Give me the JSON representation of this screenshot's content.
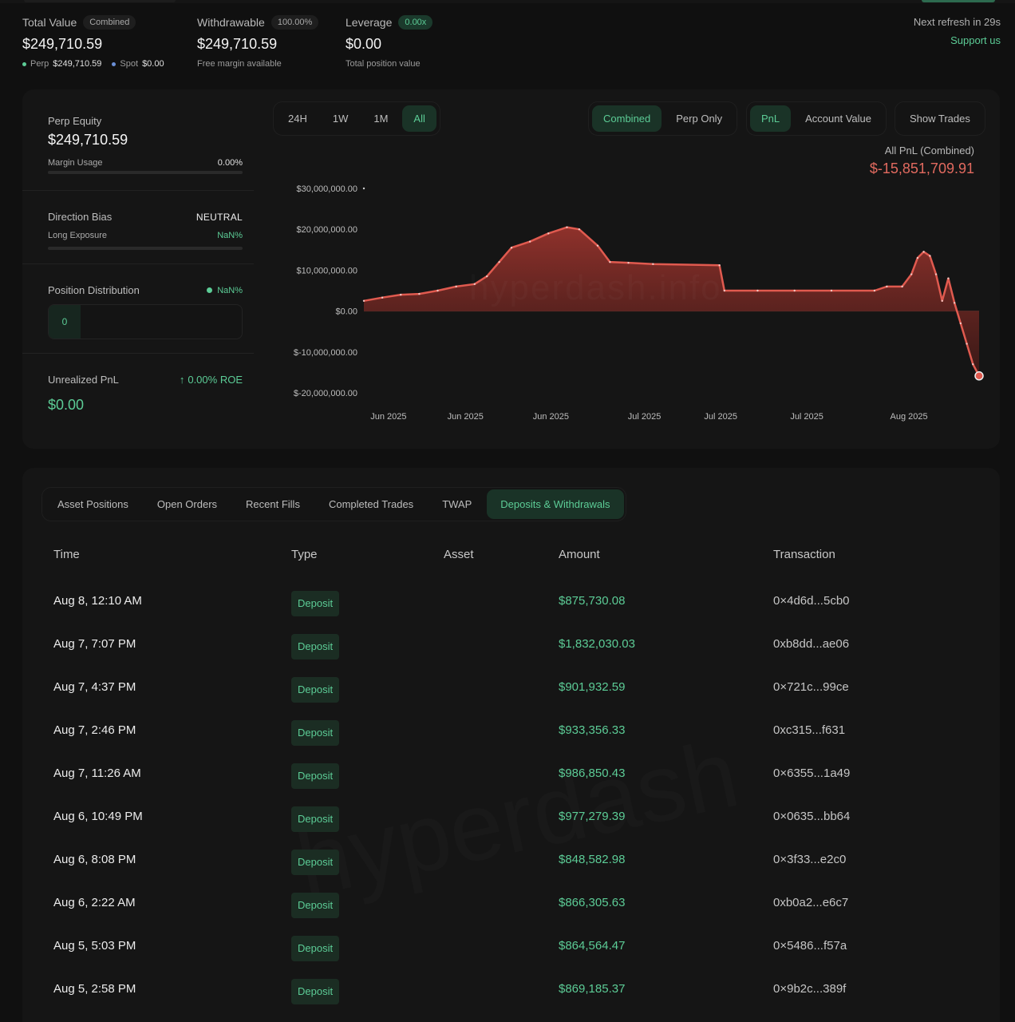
{
  "summary": {
    "total_value": {
      "label": "Total Value",
      "tag": "Combined",
      "value": "$249,710.59",
      "perp_label": "Perp",
      "perp_value": "$249,710.59",
      "spot_label": "Spot",
      "spot_value": "$0.00",
      "perp_color": "#5ccc96",
      "spot_color": "#6b8fd6"
    },
    "withdrawable": {
      "label": "Withdrawable",
      "tag": "100.00%",
      "value": "$249,710.59",
      "sub": "Free margin available"
    },
    "leverage": {
      "label": "Leverage",
      "tag": "0.00x",
      "value": "$0.00",
      "sub": "Total position value"
    },
    "refresh_text": "Next refresh in 29s",
    "support_link": "Support us"
  },
  "equity": {
    "label": "Perp Equity",
    "value": "$249,710.59",
    "margin_label": "Margin Usage",
    "margin_value": "0.00%",
    "margin_fraction": 0
  },
  "bias": {
    "label": "Direction Bias",
    "value": "NEUTRAL",
    "exposure_label": "Long Exposure",
    "exposure_value": "NaN%"
  },
  "distribution": {
    "label": "Position Distribution",
    "value": "NaN%",
    "segment_label": "0"
  },
  "unrealized": {
    "label": "Unrealized PnL",
    "roe": "0.00% ROE",
    "value": "$0.00"
  },
  "controls": {
    "ranges": [
      "24H",
      "1W",
      "1M",
      "All"
    ],
    "active_range": "All",
    "modes": [
      "Combined",
      "Perp Only"
    ],
    "active_mode": "Combined",
    "metrics": [
      "PnL",
      "Account Value"
    ],
    "active_metric": "PnL",
    "show_trades": "Show Trades"
  },
  "chart_data": {
    "type": "area",
    "title": "All PnL (Combined)",
    "current_value": "$-15,851,709.91",
    "watermark": "hyperdash.info",
    "y_ticks": [
      {
        "value": 30000000,
        "label": "$30,000,000.00"
      },
      {
        "value": 20000000,
        "label": "$20,000,000.00"
      },
      {
        "value": 10000000,
        "label": "$10,000,000.00"
      },
      {
        "value": 0,
        "label": "$0.00"
      },
      {
        "value": -10000000,
        "label": "$-10,000,000.00"
      },
      {
        "value": -20000000,
        "label": "$-20,000,000.00"
      }
    ],
    "ylim": [
      -20000000,
      30000000
    ],
    "x_domain": [
      0,
      100
    ],
    "x_ticks": [
      {
        "x": 4,
        "label": "Jun 2025"
      },
      {
        "x": 16.5,
        "label": "Jun 2025"
      },
      {
        "x": 30.4,
        "label": "Jun 2025"
      },
      {
        "x": 45.6,
        "label": "Jul 2025"
      },
      {
        "x": 58,
        "label": "Jul 2025"
      },
      {
        "x": 72,
        "label": "Jul 2025"
      },
      {
        "x": 88.6,
        "label": "Aug 2025"
      }
    ],
    "series": [
      {
        "name": "PnL",
        "color": "#e05a4f",
        "points": [
          [
            0,
            2500000
          ],
          [
            3,
            3300000
          ],
          [
            6,
            4000000
          ],
          [
            9,
            4200000
          ],
          [
            12,
            5000000
          ],
          [
            15,
            6000000
          ],
          [
            18,
            6600000
          ],
          [
            20,
            8500000
          ],
          [
            22,
            12000000
          ],
          [
            24,
            15500000
          ],
          [
            27,
            17000000
          ],
          [
            30,
            19000000
          ],
          [
            33,
            20500000
          ],
          [
            35,
            20000000
          ],
          [
            38,
            16000000
          ],
          [
            40,
            12000000
          ],
          [
            43,
            11800000
          ],
          [
            47,
            11500000
          ],
          [
            57.8,
            11200000
          ],
          [
            58.6,
            5000000
          ],
          [
            64,
            5000000
          ],
          [
            70,
            5000000
          ],
          [
            76,
            5000000
          ],
          [
            83,
            5000000
          ],
          [
            85,
            6000000
          ],
          [
            87.5,
            6000000
          ],
          [
            89,
            9000000
          ],
          [
            90,
            13000000
          ],
          [
            91,
            14500000
          ],
          [
            92,
            13500000
          ],
          [
            93,
            9000000
          ],
          [
            94,
            2500000
          ],
          [
            95,
            8000000
          ],
          [
            96,
            2000000
          ],
          [
            97,
            -3000000
          ],
          [
            98,
            -8000000
          ],
          [
            99,
            -13000000
          ],
          [
            100,
            -15851709.91
          ]
        ]
      }
    ]
  },
  "tabs": {
    "items": [
      "Asset Positions",
      "Open Orders",
      "Recent Fills",
      "Completed Trades",
      "TWAP",
      "Deposits & Withdrawals"
    ],
    "active": "Deposits & Withdrawals"
  },
  "table": {
    "columns": [
      "Time",
      "Type",
      "Asset",
      "Amount",
      "Transaction"
    ],
    "rows": [
      {
        "time": "Aug 8, 12:10 AM",
        "type": "Deposit",
        "asset": "",
        "amount": "$875,730.08",
        "tx": "0×4d6d...5cb0"
      },
      {
        "time": "Aug 7, 7:07 PM",
        "type": "Deposit",
        "asset": "",
        "amount": "$1,832,030.03",
        "tx": "0xb8dd...ae06"
      },
      {
        "time": "Aug 7, 4:37 PM",
        "type": "Deposit",
        "asset": "",
        "amount": "$901,932.59",
        "tx": "0×721c...99ce"
      },
      {
        "time": "Aug 7, 2:46 PM",
        "type": "Deposit",
        "asset": "",
        "amount": "$933,356.33",
        "tx": "0xc315...f631"
      },
      {
        "time": "Aug 7, 11:26 AM",
        "type": "Deposit",
        "asset": "",
        "amount": "$986,850.43",
        "tx": "0×6355...1a49"
      },
      {
        "time": "Aug 6, 10:49 PM",
        "type": "Deposit",
        "asset": "",
        "amount": "$977,279.39",
        "tx": "0×0635...bb64"
      },
      {
        "time": "Aug 6, 8:08 PM",
        "type": "Deposit",
        "asset": "",
        "amount": "$848,582.98",
        "tx": "0×3f33...e2c0"
      },
      {
        "time": "Aug 6, 2:22 AM",
        "type": "Deposit",
        "asset": "",
        "amount": "$866,305.63",
        "tx": "0xb0a2...e6c7"
      },
      {
        "time": "Aug 5, 5:03 PM",
        "type": "Deposit",
        "asset": "",
        "amount": "$864,564.47",
        "tx": "0×5486...f57a"
      },
      {
        "time": "Aug 5, 2:58 PM",
        "type": "Deposit",
        "asset": "",
        "amount": "$869,185.37",
        "tx": "0×9b2c...389f"
      }
    ],
    "watermark": "hyperdash"
  }
}
